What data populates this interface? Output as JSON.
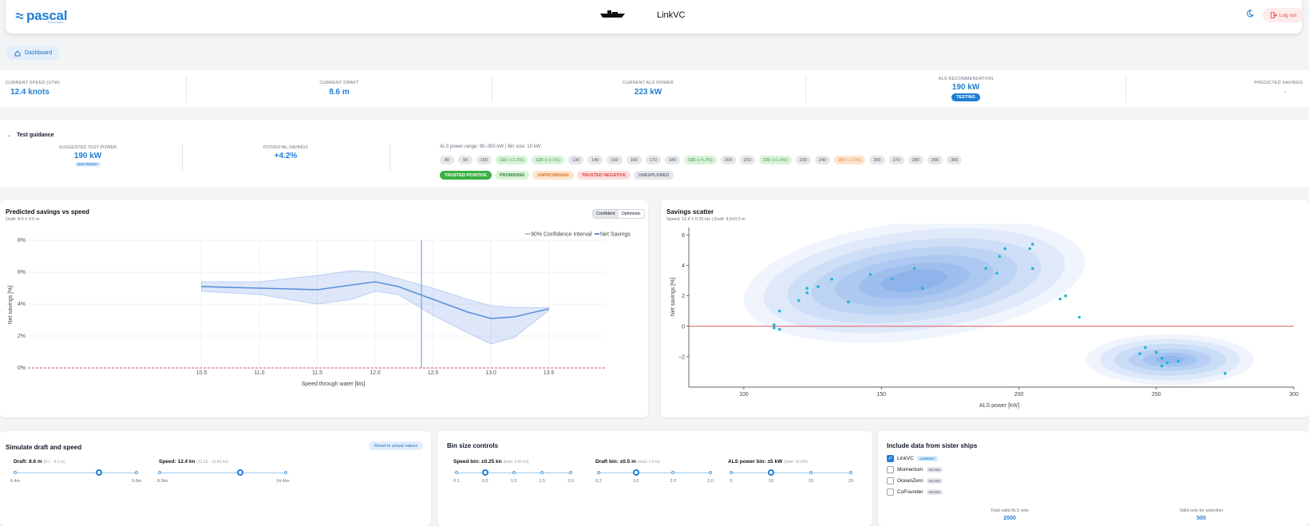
{
  "header": {
    "logo": "pascal",
    "logo_sub": "technologies",
    "vessel_name": "LinkVC",
    "logout_label": "Log out"
  },
  "breadcrumb": {
    "label": "Dashboard"
  },
  "metrics": {
    "speed": {
      "label": "CURRENT SPEED (STW)",
      "value": "12.4 knots"
    },
    "draft": {
      "label": "CURRENT DRAFT",
      "value": "8.6 m"
    },
    "als_power": {
      "label": "CURRENT ALS POWER",
      "value": "223 kW"
    },
    "recommendation": {
      "label": "ALS RECOMMENDATION",
      "value": "190 kW",
      "badge": "TESTING"
    },
    "predicted": {
      "label": "PREDICTED SAVINGS",
      "value": "-"
    }
  },
  "guidance": {
    "title": "Test guidance",
    "suggested_label": "SUGGESTED TEST POWER",
    "suggested_value": "190 kW",
    "priority": "HIGH PRIORITY",
    "potential_label": "POTENTIAL SAVINGS",
    "potential_value": "+4.2%",
    "range_text": "ALS power range: 80–300 kW | Bin size: 10 kW",
    "bins": [
      {
        "label": "80",
        "kind": ""
      },
      {
        "label": "90",
        "kind": ""
      },
      {
        "label": "100",
        "kind": ""
      },
      {
        "label": "110",
        "delta": "(+3.2%)",
        "kind": "g"
      },
      {
        "label": "120",
        "delta": "(+2.1%)",
        "kind": "g"
      },
      {
        "label": "130",
        "kind": ""
      },
      {
        "label": "140",
        "kind": ""
      },
      {
        "label": "150",
        "kind": ""
      },
      {
        "label": "160",
        "kind": ""
      },
      {
        "label": "170",
        "kind": ""
      },
      {
        "label": "180",
        "kind": ""
      },
      {
        "label": "190",
        "delta": "(+4.2%)",
        "kind": "g"
      },
      {
        "label": "200",
        "kind": ""
      },
      {
        "label": "210",
        "kind": ""
      },
      {
        "label": "220",
        "delta": "(+1.4%)",
        "kind": "g"
      },
      {
        "label": "230",
        "kind": ""
      },
      {
        "label": "240",
        "kind": ""
      },
      {
        "label": "250",
        "delta": "(-2.0%)",
        "kind": "o"
      },
      {
        "label": "260",
        "kind": ""
      },
      {
        "label": "270",
        "kind": ""
      },
      {
        "label": "280",
        "kind": ""
      },
      {
        "label": "290",
        "kind": ""
      },
      {
        "label": "300",
        "kind": ""
      }
    ],
    "legend": [
      {
        "label": "TRUSTED POSITIVE",
        "bg": "#3cb043",
        "fg": "#ffffff"
      },
      {
        "label": "PROMISING",
        "bg": "#d8f3d9",
        "fg": "#2e8b3a"
      },
      {
        "label": "UNPROMISING",
        "bg": "#fde4cd",
        "fg": "#d9772e"
      },
      {
        "label": "TRUSTED NEGATIVE",
        "bg": "#fddede",
        "fg": "#d94343"
      },
      {
        "label": "UNEXPLORED",
        "bg": "#e5e7eb",
        "fg": "#6b7280"
      }
    ]
  },
  "savings_chart": {
    "title": "Predicted savings vs speed",
    "subtitle": "Draft: 8.6 ± 0.5 m",
    "toggle": [
      "Confident",
      "Optimistic"
    ],
    "legend_ci": "90% Confidence Interval",
    "legend_net": "Net Savings"
  },
  "scatter_chart": {
    "title": "Savings scatter",
    "subtitle": "Speed: 12.4 ± 0.25 kts | Draft: 8.6±0.5 m"
  },
  "chart_data": [
    {
      "type": "line",
      "xlabel": "Speed through water [kts]",
      "ylabel": "Net savings [%]",
      "xlim": [
        10.5,
        13.5
      ],
      "ylim": [
        0,
        8
      ],
      "x_ticks": [
        "10.5",
        "11.0",
        "11.5",
        "12.0",
        "12.5",
        "13.0",
        "13.5"
      ],
      "y_ticks": [
        "0%",
        "2%",
        "4%",
        "6%",
        "8%"
      ],
      "current_speed": 12.4,
      "series": [
        {
          "name": "Net Savings",
          "x": [
            10.5,
            11.0,
            11.5,
            11.8,
            12.0,
            12.2,
            12.5,
            12.8,
            13.0,
            13.2,
            13.5
          ],
          "values": [
            5.1,
            5.0,
            4.9,
            5.2,
            5.4,
            5.1,
            4.3,
            3.5,
            3.1,
            3.2,
            3.7
          ]
        },
        {
          "name": "90% Confidence Interval",
          "x": [
            10.5,
            11.0,
            11.5,
            11.8,
            12.0,
            12.2,
            12.5,
            12.8,
            13.0,
            13.2,
            13.5
          ],
          "upper": [
            5.4,
            5.4,
            5.8,
            6.1,
            6.0,
            5.6,
            5.0,
            4.3,
            3.9,
            3.8,
            3.8
          ],
          "lower": [
            4.8,
            4.6,
            4.0,
            4.3,
            4.8,
            4.6,
            3.3,
            2.2,
            1.5,
            1.9,
            3.6
          ]
        }
      ]
    },
    {
      "type": "scatter",
      "xlabel": "ALS power [kW]",
      "ylabel": "Net savings [%]",
      "xlim": [
        80,
        300
      ],
      "ylim": [
        -4,
        6.5
      ],
      "x_ticks": [
        "100",
        "150",
        "200",
        "250",
        "300"
      ],
      "y_ticks": [
        "6",
        "4",
        "2",
        "0",
        "−2"
      ],
      "points": [
        [
          111,
          0.1
        ],
        [
          111,
          -0.1
        ],
        [
          113,
          1.0
        ],
        [
          113,
          -0.2
        ],
        [
          120,
          1.7
        ],
        [
          123,
          2.2
        ],
        [
          123,
          2.5
        ],
        [
          127,
          2.6
        ],
        [
          132,
          3.1
        ],
        [
          138,
          1.6
        ],
        [
          146,
          3.4
        ],
        [
          154,
          3.1
        ],
        [
          162,
          3.8
        ],
        [
          165,
          2.5
        ],
        [
          188,
          3.8
        ],
        [
          192,
          3.5
        ],
        [
          193,
          4.6
        ],
        [
          195,
          5.1
        ],
        [
          204,
          5.1
        ],
        [
          205,
          5.4
        ],
        [
          205,
          3.8
        ],
        [
          215,
          1.8
        ],
        [
          217,
          2.0
        ],
        [
          222,
          0.6
        ],
        [
          244,
          -1.8
        ],
        [
          246,
          -1.4
        ],
        [
          250,
          -1.7
        ],
        [
          252,
          -2.1
        ],
        [
          252,
          -2.6
        ],
        [
          254,
          -2.4
        ],
        [
          258,
          -2.3
        ],
        [
          275,
          -3.1
        ]
      ]
    }
  ],
  "simulate": {
    "title": "Simulate draft and speed",
    "reset_label": "Reset to actual values",
    "draft_label": "Draft: 8.6 m",
    "draft_range": "(8.1 - 9.1 m)",
    "draft_min": "6.4m",
    "draft_max": "9.8m",
    "draft_value": 0.69,
    "speed_label": "Speed: 12.4 kn",
    "speed_range": "(12.15 - 12.65 kn)",
    "speed_min": "8.9kn",
    "speed_max": "14.4kn",
    "speed_value": 0.64
  },
  "bins_controls": {
    "title": "Bin size controls",
    "speed": {
      "label": "Speed bin: ±0.25 kn",
      "total": "(total: 0.50 kn)",
      "ticks": [
        "0.1",
        "0.5",
        "1.0",
        "1.5",
        "2.0"
      ],
      "selected": 1
    },
    "draft": {
      "label": "Draft bin: ±0.5 m",
      "total": "(total: 1.0 m)",
      "ticks": [
        "0.2",
        "1.0",
        "2.0",
        "3.0"
      ],
      "selected": 1
    },
    "power": {
      "label": "ALS power bin: ±5 kW",
      "total": "(total: 10 kW)",
      "ticks": [
        "5",
        "10",
        "15",
        "20"
      ],
      "selected": 1
    }
  },
  "sister_ships": {
    "title": "Include data from sister ships",
    "ships": [
      {
        "name": "LinkVC",
        "tag": "CURRENT",
        "checked": true
      },
      {
        "name": "Momentum",
        "tag": "SISTER",
        "checked": false
      },
      {
        "name": "OceanZero",
        "tag": "SISTER",
        "checked": false
      },
      {
        "name": "CoFounder",
        "tag": "SISTER",
        "checked": false
      }
    ],
    "total_label": "Total valid ALS sets",
    "total_value": "2000",
    "valid_label": "Valid sets for selection",
    "valid_value": "500"
  },
  "colors": {
    "accent": "#1f7ed6",
    "zero_line": "#e05a5a"
  }
}
